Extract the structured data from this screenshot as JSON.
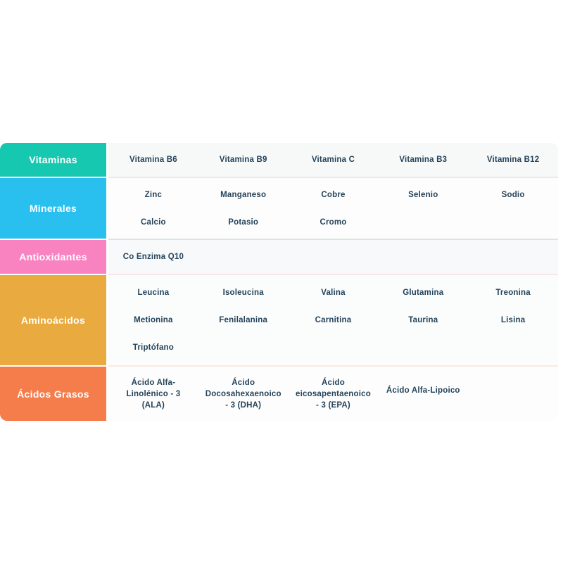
{
  "table": {
    "name": "nutrient-categories-table",
    "text_color": "#24435a",
    "rows": [
      {
        "category": "Vitaminas",
        "color": "#16C8B0",
        "bg": "#F7F9F9",
        "divider": "#E3EDEF",
        "cells": [
          [
            "Vitamina B6"
          ],
          [
            "Vitamina B9"
          ],
          [
            "Vitamina C"
          ],
          [
            "Vitamina B3"
          ],
          [
            "Vitamina B12"
          ]
        ]
      },
      {
        "category": "Minerales",
        "color": "#29C0F0",
        "bg": "#FDFDFD",
        "divider": "#D9E6E3",
        "cells": [
          [
            "Zinc",
            "Calcio"
          ],
          [
            "Manganeso",
            "Potasio"
          ],
          [
            "Cobre",
            "Cromo"
          ],
          [
            "Selenio"
          ],
          [
            "Sodio"
          ]
        ]
      },
      {
        "category": "Antioxidantes",
        "color": "#F983C1",
        "bg": "#F8F9FA",
        "divider": "#F7E7EA",
        "cells": [
          [
            "Co Enzima Q10"
          ],
          [],
          [],
          [],
          []
        ]
      },
      {
        "category": "Aminoácidos",
        "color": "#E9AB3F",
        "bg": "#FBFCFC",
        "divider": "#FAE9E5",
        "cells": [
          [
            "Leucina",
            "Metionina",
            "Triptófano"
          ],
          [
            "Isoleucina",
            "Fenilalanina"
          ],
          [
            "Valina",
            "Carnitina"
          ],
          [
            "Glutamina",
            "Taurina"
          ],
          [
            "Treonina",
            "Lisina"
          ]
        ]
      },
      {
        "category": "Ácidos Grasos",
        "color": "#F57C4B",
        "bg": "#FDFDFD",
        "divider": "none",
        "cells": [
          [
            "Ácido Alfa-\nLinolénico - 3\n(ALA)"
          ],
          [
            "Ácido\nDocosahexaenoico\n- 3 (DHA)"
          ],
          [
            "Ácido\neicosapentaenoico\n- 3 (EPA)"
          ],
          [
            "Ácido Alfa-Lipoico"
          ],
          []
        ]
      }
    ]
  }
}
